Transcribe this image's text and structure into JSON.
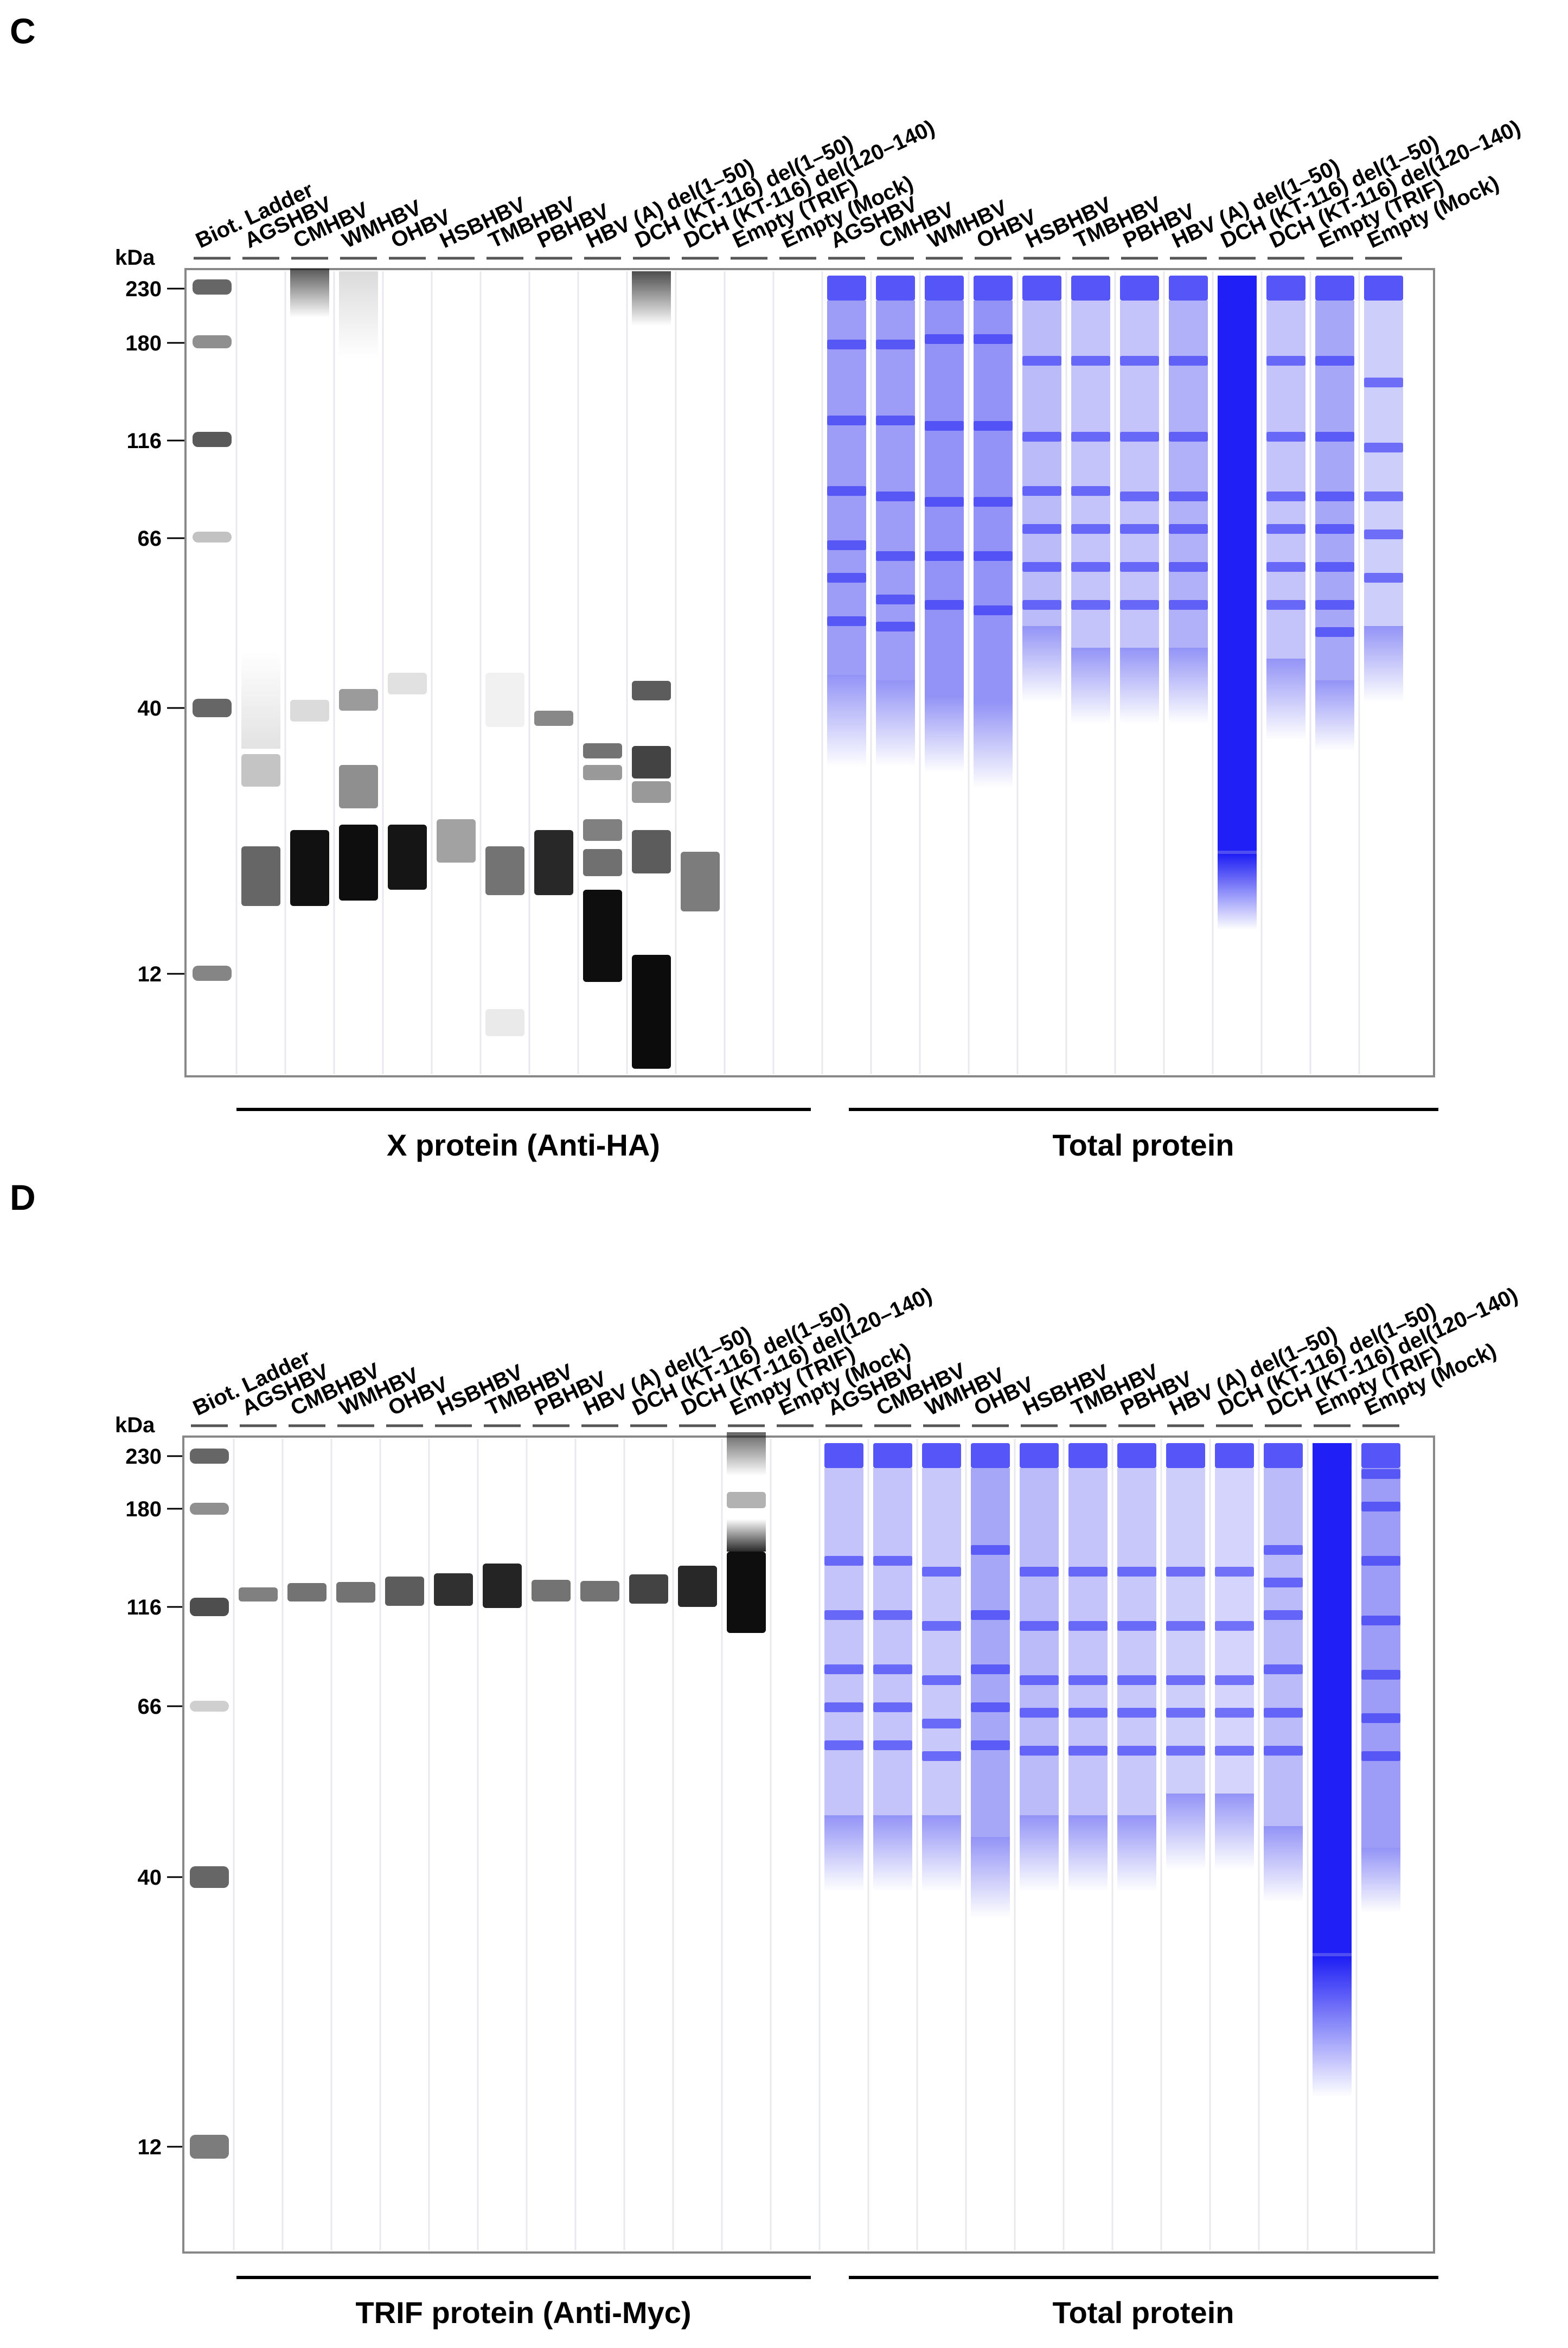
{
  "panels": [
    {
      "id": "C",
      "label": "C",
      "unit_label": "kDa",
      "ladder_kda": [
        "230",
        "180",
        "116",
        "66",
        "40",
        "12"
      ],
      "lanes": [
        "Biot. Ladder",
        "AGSHBV",
        "CMHBV",
        "WMHBV",
        "OHBV",
        "HSBHBV",
        "TMBHBV",
        "PBHBV",
        "HBV (A) del(1–50)",
        "DCH (KT-116) del(1–50)",
        "DCH (KT-116) del(120–140)",
        "Empty (TRIF)",
        "Empty (Mock)",
        "AGSHBV",
        "CMHBV",
        "WMHBV",
        "OHBV",
        "HSBHBV",
        "TMBHBV",
        "PBHBV",
        "HBV (A) del(1–50)",
        "DCH (KT-116) del(1–50)",
        "DCH (KT-116) del(120–140)",
        "Empty (TRIF)",
        "Empty (Mock)"
      ],
      "groups": [
        {
          "label": "X protein (Anti-HA)"
        },
        {
          "label": "Total protein"
        }
      ]
    },
    {
      "id": "D",
      "label": "D",
      "unit_label": "kDa",
      "ladder_kda": [
        "230",
        "180",
        "116",
        "66",
        "40",
        "12"
      ],
      "lanes": [
        "Biot. Ladder",
        "AGSHBV",
        "CMBHBV",
        "WMHBV",
        "OHBV",
        "HSBHBV",
        "TMBHBV",
        "PBHBV",
        "HBV (A) del(1–50)",
        "DCH (KT-116) del(1–50)",
        "DCH (KT-116) del(120–140)",
        "Empty (TRIF)",
        "Empty (Mock)",
        "AGSHBV",
        "CMBHBV",
        "WMHBV",
        "OHBV",
        "HSBHBV",
        "TMBHBV",
        "PBHBV",
        "HBV (A) del(1–50)",
        "DCH (KT-116) del(1–50)",
        "DCH (KT-116) del(120–140)",
        "Empty (TRIF)",
        "Empty (Mock)"
      ],
      "groups": [
        {
          "label": "TRIF protein (Anti-Myc)"
        },
        {
          "label": "Total protein"
        }
      ]
    }
  ],
  "colors": {
    "western_band": "#111111",
    "total_protein": "#3b3bf0",
    "total_protein_intense": "#1e1ef5",
    "frame": "#888888"
  }
}
